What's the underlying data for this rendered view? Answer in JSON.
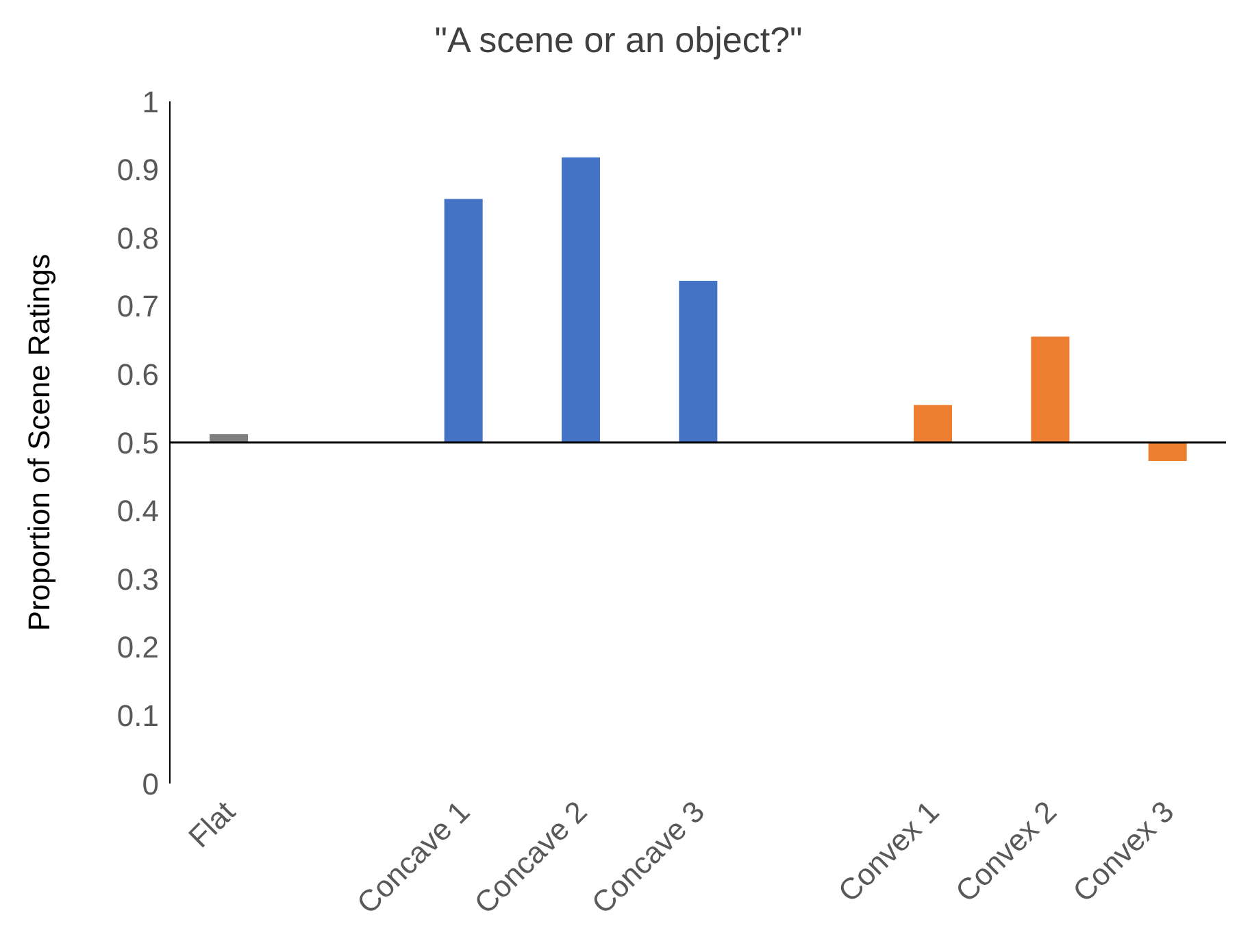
{
  "chart_data": {
    "type": "bar",
    "title": "\"A scene or an object?\"",
    "ylabel": "Proportion of Scene Ratings",
    "categories": [
      "Flat",
      null,
      "Concave 1",
      "Concave 2",
      "Concave 3",
      null,
      "Convex 1",
      "Convex 2",
      "Convex 3"
    ],
    "base": [
      0.5,
      null,
      0.5,
      0.5,
      0.5,
      null,
      0.5,
      0.5,
      0.5
    ],
    "values": [
      0.012,
      null,
      0.357,
      0.418,
      0.237,
      null,
      0.055,
      0.155,
      -0.027
    ],
    "colors": [
      "#7f7f7f",
      "#4472c4",
      "#4472c4",
      "#4472c4",
      "#4472c4",
      "#ed7d31",
      "#ed7d31",
      "#ed7d31",
      "#ed7d31"
    ],
    "ylim": [
      0,
      1
    ],
    "yticks": [
      0,
      0.1,
      0.2,
      0.3,
      0.4,
      0.5,
      0.6,
      0.7,
      0.8,
      0.9,
      1
    ],
    "ref_lines": [
      {
        "axis": "y",
        "value": 0.5,
        "color": "#000000"
      }
    ],
    "grid": false
  }
}
